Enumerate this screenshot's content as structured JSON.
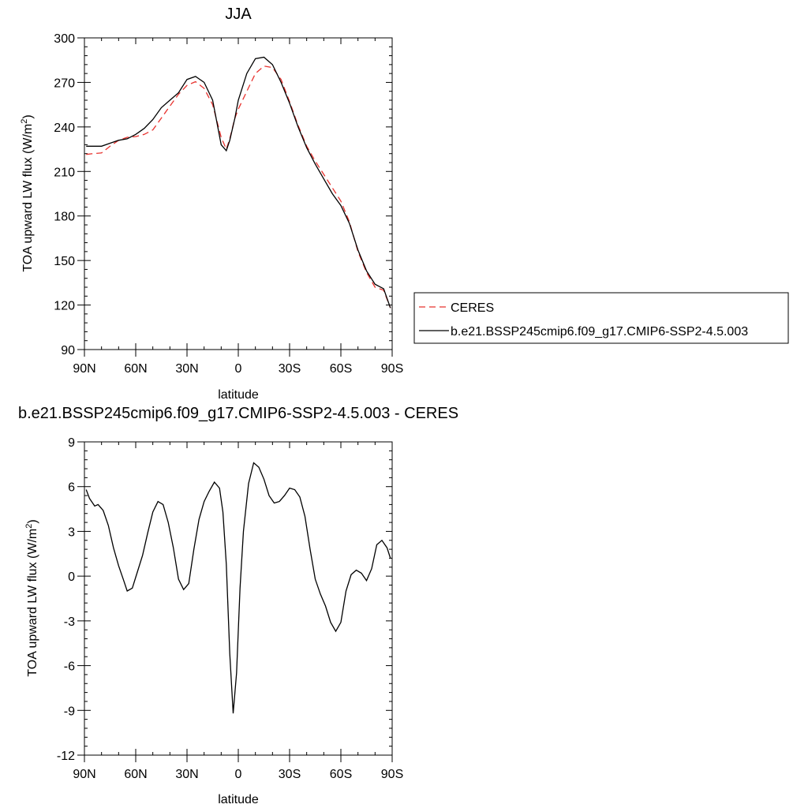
{
  "chart_data": [
    {
      "type": "line",
      "title": "JJA",
      "xlabel": "latitude",
      "ylabel": "TOA upward LW flux (W/m",
      "ylabel_sup": "2",
      "ylabel_tail": ")",
      "xlim": [
        -90,
        90
      ],
      "ylim": [
        90,
        300
      ],
      "x_ticks": [
        -90,
        -60,
        -30,
        0,
        30,
        60,
        90
      ],
      "x_tick_labels": [
        "90N",
        "60N",
        "30N",
        "0",
        "30S",
        "60S",
        "90S"
      ],
      "y_ticks": [
        90,
        120,
        150,
        180,
        210,
        240,
        270,
        300
      ],
      "y_tick_labels": [
        "90",
        "120",
        "150",
        "180",
        "210",
        "240",
        "270",
        "300"
      ],
      "legend_position": "right",
      "series": [
        {
          "name": "CERES",
          "color": "#e8332f",
          "dash": "dashed",
          "x": [
            -89,
            -85,
            -80,
            -75,
            -70,
            -65,
            -60,
            -55,
            -50,
            -45,
            -40,
            -35,
            -30,
            -25,
            -20,
            -15,
            -10,
            -7,
            -5,
            -2,
            0,
            5,
            10,
            15,
            20,
            25,
            30,
            35,
            40,
            45,
            50,
            55,
            60,
            65,
            70,
            75,
            80,
            85,
            89
          ],
          "y": [
            221.5,
            222,
            222.5,
            227,
            231,
            233,
            233.5,
            235,
            238,
            246,
            254,
            262,
            268,
            270.5,
            266,
            255,
            233,
            225,
            232,
            246,
            252,
            264,
            276,
            281,
            280,
            272,
            257,
            241,
            227,
            217,
            208,
            199,
            190,
            176,
            156,
            142,
            132,
            130,
            118
          ]
        },
        {
          "name": "b.e21.BSSP245cmip6.f09_g17.CMIP6-SSP2-4.5.003",
          "color": "#000000",
          "dash": "solid",
          "x": [
            -89,
            -85,
            -80,
            -75,
            -70,
            -65,
            -60,
            -55,
            -50,
            -45,
            -40,
            -35,
            -30,
            -25,
            -20,
            -15,
            -10,
            -7,
            -5,
            -2,
            0,
            5,
            10,
            15,
            20,
            25,
            30,
            35,
            40,
            45,
            50,
            55,
            60,
            65,
            70,
            75,
            80,
            85,
            89
          ],
          "y": [
            227,
            227,
            227,
            229,
            231,
            232,
            235,
            239,
            245,
            253,
            258,
            263,
            272,
            274,
            270,
            258,
            228,
            224,
            231,
            246,
            258,
            276,
            286,
            287,
            282,
            270,
            256,
            240,
            226,
            215,
            205,
            195,
            187,
            175,
            157,
            143,
            134,
            131,
            118
          ]
        }
      ]
    },
    {
      "type": "line",
      "title": "b.e21.BSSP245cmip6.f09_g17.CMIP6-SSP2-4.5.003 - CERES",
      "xlabel": "latitude",
      "ylabel": "TOA upward LW flux (W/m",
      "ylabel_sup": "2",
      "ylabel_tail": ")",
      "xlim": [
        -90,
        90
      ],
      "ylim": [
        -12,
        9
      ],
      "x_ticks": [
        -90,
        -60,
        -30,
        0,
        30,
        60,
        90
      ],
      "x_tick_labels": [
        "90N",
        "60N",
        "30N",
        "0",
        "30S",
        "60S",
        "90S"
      ],
      "y_ticks": [
        -12,
        -9,
        -6,
        -3,
        0,
        3,
        6,
        9
      ],
      "y_tick_labels": [
        "-12",
        "-9",
        "-6",
        "-3",
        "0",
        "3",
        "6",
        "9"
      ],
      "series": [
        {
          "color": "#000000",
          "dash": "solid",
          "x": [
            -89,
            -87,
            -84,
            -82,
            -79,
            -76,
            -73,
            -70,
            -67,
            -65,
            -62,
            -59,
            -56,
            -53,
            -50,
            -47,
            -44,
            -41,
            -38,
            -35,
            -32,
            -29,
            -26,
            -23,
            -20,
            -17,
            -14,
            -11,
            -9,
            -7,
            -5,
            -3,
            -1,
            1,
            3,
            6,
            9,
            12,
            15,
            18,
            21,
            24,
            27,
            30,
            33,
            36,
            39,
            42,
            45,
            48,
            51,
            54,
            57,
            60,
            63,
            66,
            69,
            72,
            75,
            78,
            81,
            84,
            87,
            89
          ],
          "y": [
            5.8,
            5.2,
            4.7,
            4.8,
            4.4,
            3.4,
            1.9,
            0.7,
            -0.3,
            -1.0,
            -0.8,
            0.3,
            1.4,
            2.9,
            4.3,
            5.0,
            4.8,
            3.6,
            1.9,
            -0.2,
            -0.9,
            -0.5,
            1.8,
            3.8,
            5.0,
            5.7,
            6.3,
            5.9,
            4.3,
            0.8,
            -5.2,
            -9.2,
            -6.5,
            -0.8,
            3.0,
            6.2,
            7.6,
            7.3,
            6.5,
            5.4,
            4.9,
            5.0,
            5.4,
            5.9,
            5.8,
            5.3,
            4.0,
            1.8,
            -0.2,
            -1.2,
            -2.0,
            -3.1,
            -3.7,
            -3.1,
            -1.0,
            0.1,
            0.4,
            0.2,
            -0.3,
            0.5,
            2.1,
            2.4,
            1.9,
            1.2
          ]
        }
      ]
    }
  ]
}
